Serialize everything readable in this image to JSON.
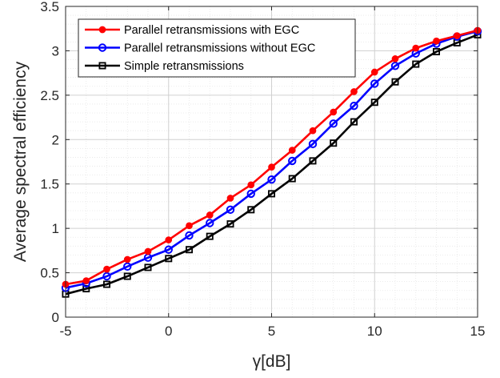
{
  "chart_data": {
    "type": "line",
    "xlabel": "γ[dB]",
    "ylabel": "Average spectral efficiency",
    "xlim": [
      -5,
      15
    ],
    "ylim": [
      0,
      3.5
    ],
    "xticks": [
      -5,
      0,
      5,
      10,
      15
    ],
    "xtick_labels": [
      "-5",
      "0",
      "5",
      "10",
      "15"
    ],
    "yticks": [
      0,
      0.5,
      1,
      1.5,
      2,
      2.5,
      3,
      3.5
    ],
    "ytick_labels": [
      "0",
      "0.5",
      "1",
      "1.5",
      "2",
      "2.5",
      "3",
      "3.5"
    ],
    "grid": true,
    "minor_grid": true,
    "legend_position": "top-left",
    "x": [
      -5,
      -4,
      -3,
      -2,
      -1,
      0,
      1,
      2,
      3,
      4,
      5,
      6,
      7,
      8,
      9,
      10,
      11,
      12,
      13,
      14,
      15
    ],
    "series": [
      {
        "name": "Parallel retransmissions with EGC",
        "color": "#ff0000",
        "marker": "filled-circle",
        "values": [
          0.37,
          0.41,
          0.54,
          0.65,
          0.74,
          0.87,
          1.03,
          1.15,
          1.34,
          1.49,
          1.69,
          1.88,
          2.1,
          2.31,
          2.54,
          2.76,
          2.91,
          3.03,
          3.11,
          3.17,
          3.23
        ]
      },
      {
        "name": "Parallel retransmissions without EGC",
        "color": "#0000ff",
        "marker": "open-circle",
        "values": [
          0.33,
          0.38,
          0.46,
          0.57,
          0.67,
          0.76,
          0.92,
          1.06,
          1.21,
          1.39,
          1.55,
          1.76,
          1.95,
          2.18,
          2.38,
          2.63,
          2.83,
          2.97,
          3.08,
          3.16,
          3.22
        ]
      },
      {
        "name": "Simple retransmissions",
        "color": "#000000",
        "marker": "open-square",
        "values": [
          0.26,
          0.32,
          0.37,
          0.46,
          0.56,
          0.66,
          0.76,
          0.91,
          1.05,
          1.21,
          1.39,
          1.56,
          1.76,
          1.96,
          2.2,
          2.42,
          2.65,
          2.85,
          2.99,
          3.09,
          3.18
        ]
      }
    ]
  }
}
